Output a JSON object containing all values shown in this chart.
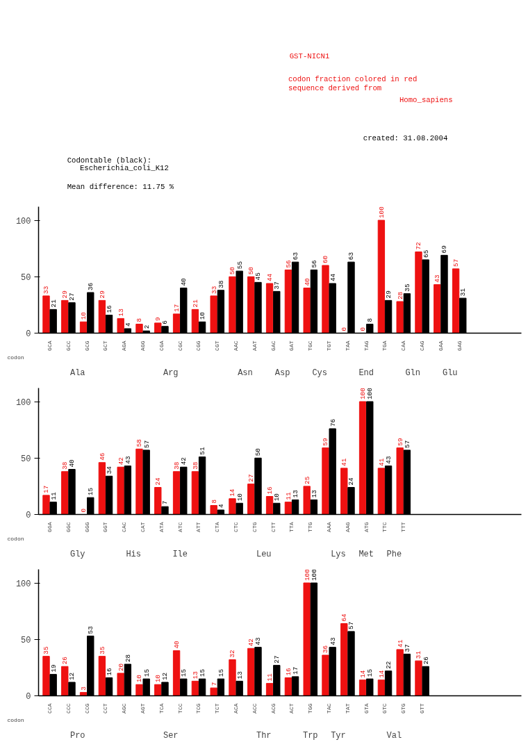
{
  "chart_data": [
    {
      "type": "bar",
      "title": "GST-NICN1",
      "xlabel": "codon",
      "data_labels": true,
      "ylim": [
        0,
        112
      ],
      "yticks": [
        0,
        50,
        100
      ],
      "grid": false,
      "categories": [
        "GCA",
        "GCC",
        "GCG",
        "GCT",
        "AGA",
        "AGG",
        "CGA",
        "CGC",
        "CGG",
        "CGT",
        "AAC",
        "AAT",
        "GAC",
        "GAT",
        "TGC",
        "TGT",
        "TAA",
        "TAG",
        "TGA",
        "CAA",
        "CAG",
        "GAA",
        "GAG"
      ],
      "series": [
        {
          "color": "#ee1111",
          "values": [
            33,
            29,
            10,
            29,
            13,
            8,
            9,
            17,
            21,
            33,
            50,
            50,
            44,
            56,
            40,
            60,
            0,
            0,
            100,
            28,
            72,
            43,
            57
          ]
        },
        {
          "color": "#000000",
          "values": [
            21,
            27,
            36,
            16,
            4,
            2,
            6,
            40,
            10,
            38,
            55,
            45,
            37,
            63,
            56,
            44,
            63,
            8,
            29,
            35,
            65,
            69,
            31
          ]
        }
      ],
      "annotations": [
        "codon fraction colored in red",
        "sequence derived from",
        "Homo_sapiens",
        "created: 31.08.2004",
        "Codontable (black):",
        "Escherichia_coli_K12",
        "Mean difference: 11.75 %",
        "Ala",
        "Arg",
        "Asn",
        "Asp",
        "Cys",
        "End",
        "Gln",
        "Glu"
      ]
    },
    {
      "type": "bar",
      "xlabel": "codon",
      "data_labels": true,
      "ylim": [
        0,
        112
      ],
      "yticks": [
        0,
        50,
        100
      ],
      "grid": false,
      "categories": [
        "GGA",
        "GGC",
        "GGG",
        "GGT",
        "CAC",
        "CAT",
        "ATA",
        "ATC",
        "ATT",
        "CTA",
        "CTC",
        "CTG",
        "CTT",
        "TTA",
        "TTG",
        "AAA",
        "AAG",
        "ATG",
        "TTC",
        "TTT"
      ],
      "series": [
        {
          "color": "#ee1111",
          "values": [
            17,
            38,
            0,
            46,
            42,
            58,
            24,
            38,
            38,
            8,
            14,
            27,
            16,
            11,
            25,
            59,
            41,
            100,
            41,
            59
          ]
        },
        {
          "color": "#000000",
          "values": [
            11,
            40,
            15,
            34,
            43,
            57,
            7,
            42,
            51,
            4,
            10,
            50,
            10,
            13,
            13,
            76,
            24,
            100,
            43,
            57
          ]
        }
      ],
      "annotations": [
        "Gly",
        "His",
        "Ile",
        "Leu",
        "Lys",
        "Met",
        "Phe"
      ]
    },
    {
      "type": "bar",
      "xlabel": "codon",
      "data_labels": true,
      "ylim": [
        0,
        112
      ],
      "yticks": [
        0,
        50,
        100
      ],
      "grid": false,
      "categories": [
        "CCA",
        "CCC",
        "CCG",
        "CCT",
        "AGC",
        "AGT",
        "TCA",
        "TCC",
        "TCG",
        "TCT",
        "ACA",
        "ACC",
        "ACG",
        "ACT",
        "TGG",
        "TAC",
        "TAT",
        "GTA",
        "GTC",
        "GTG",
        "GTT"
      ],
      "series": [
        {
          "color": "#ee1111",
          "values": [
            35,
            26,
            3,
            35,
            20,
            10,
            10,
            40,
            13,
            7,
            32,
            42,
            11,
            16,
            100,
            36,
            64,
            14,
            14,
            41,
            31
          ]
        },
        {
          "color": "#000000",
          "values": [
            19,
            12,
            53,
            16,
            28,
            15,
            12,
            15,
            15,
            15,
            13,
            43,
            27,
            17,
            100,
            43,
            57,
            15,
            22,
            37,
            26
          ]
        }
      ],
      "annotations": [
        "Pro",
        "Ser",
        "Thr",
        "Trp",
        "Tyr",
        "Val"
      ]
    }
  ]
}
